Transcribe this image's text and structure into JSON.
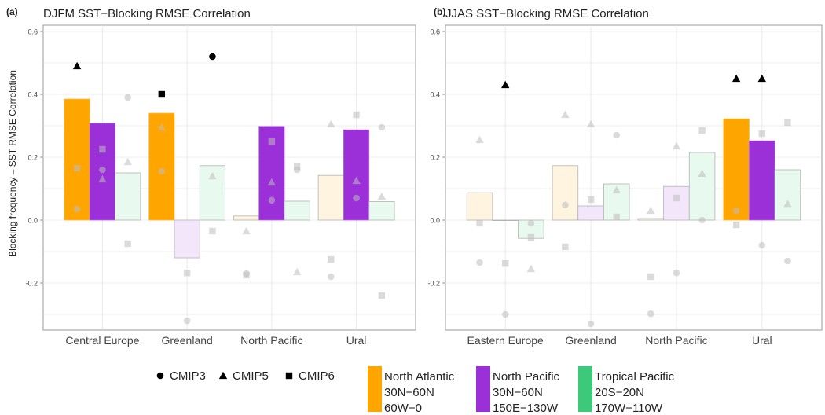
{
  "figure": {
    "ylabel": "Blocking frequency – SST RMSE Correlation",
    "panel_labels": [
      "(a)",
      "(b)"
    ]
  },
  "legend": {
    "models": [
      {
        "label": "CMIP3",
        "shape": "circle"
      },
      {
        "label": "CMIP5",
        "shape": "triangle"
      },
      {
        "label": "CMIP6",
        "shape": "square"
      }
    ],
    "regions": [
      {
        "name": "North Atlantic",
        "lat": "30N−60N",
        "lon": "60W−0",
        "color": "#FFA500"
      },
      {
        "name": "North Pacific",
        "lat": "30N−60N",
        "lon": "150E−130W",
        "color": "#9B30D9"
      },
      {
        "name": "Tropical Pacific",
        "lat": "20S−20N",
        "lon": "170W−110W",
        "color": "#3CC97A"
      }
    ]
  },
  "chart_data": [
    {
      "type": "bar",
      "panel": "(a)",
      "title": "DJFM SST−Blocking RMSE Correlation",
      "ylabel": "Blocking frequency – SST RMSE Correlation",
      "ylim": [
        -0.35,
        0.62
      ],
      "yticks": [
        -0.2,
        0.0,
        0.2,
        0.4,
        0.6
      ],
      "grid": true,
      "categories": [
        "Central Europe",
        "Greenland",
        "North Pacific",
        "Ural"
      ],
      "series": [
        {
          "name": "North Atlantic",
          "color": "#FFA500",
          "values": [
            0.385,
            0.34,
            0.013,
            0.142
          ],
          "significant": [
            true,
            true,
            false,
            false
          ]
        },
        {
          "name": "North Pacific",
          "color": "#9B30D9",
          "values": [
            0.308,
            -0.12,
            0.298,
            0.287
          ],
          "significant": [
            true,
            false,
            true,
            true
          ]
        },
        {
          "name": "Tropical Pacific",
          "color": "#3CC97A",
          "values": [
            0.15,
            0.173,
            0.06,
            0.059
          ],
          "significant": [
            false,
            false,
            false,
            false
          ]
        }
      ],
      "points": [
        {
          "category": 0,
          "series": 0,
          "model": "CMIP3",
          "value": 0.035,
          "significant": false
        },
        {
          "category": 0,
          "series": 0,
          "model": "CMIP5",
          "value": 0.49,
          "significant": true
        },
        {
          "category": 0,
          "series": 0,
          "model": "CMIP6",
          "value": 0.165,
          "significant": false
        },
        {
          "category": 0,
          "series": 1,
          "model": "CMIP3",
          "value": 0.16,
          "significant": false
        },
        {
          "category": 0,
          "series": 1,
          "model": "CMIP5",
          "value": 0.13,
          "significant": false
        },
        {
          "category": 0,
          "series": 1,
          "model": "CMIP6",
          "value": 0.225,
          "significant": false
        },
        {
          "category": 0,
          "series": 2,
          "model": "CMIP3",
          "value": 0.39,
          "significant": false
        },
        {
          "category": 0,
          "series": 2,
          "model": "CMIP5",
          "value": 0.185,
          "significant": false
        },
        {
          "category": 0,
          "series": 2,
          "model": "CMIP6",
          "value": -0.075,
          "significant": false
        },
        {
          "category": 1,
          "series": 0,
          "model": "CMIP3",
          "value": 0.155,
          "significant": false
        },
        {
          "category": 1,
          "series": 0,
          "model": "CMIP5",
          "value": 0.295,
          "significant": false
        },
        {
          "category": 1,
          "series": 0,
          "model": "CMIP6",
          "value": 0.4,
          "significant": true
        },
        {
          "category": 1,
          "series": 1,
          "model": "CMIP3",
          "value": -0.32,
          "significant": false
        },
        {
          "category": 1,
          "series": 1,
          "model": "CMIP6",
          "value": -0.168,
          "significant": false
        },
        {
          "category": 1,
          "series": 2,
          "model": "CMIP3",
          "value": 0.52,
          "significant": true
        },
        {
          "category": 1,
          "series": 2,
          "model": "CMIP5",
          "value": 0.14,
          "significant": false
        },
        {
          "category": 1,
          "series": 2,
          "model": "CMIP6",
          "value": -0.035,
          "significant": false
        },
        {
          "category": 2,
          "series": 0,
          "model": "CMIP3",
          "value": -0.17,
          "significant": false
        },
        {
          "category": 2,
          "series": 0,
          "model": "CMIP5",
          "value": -0.035,
          "significant": false
        },
        {
          "category": 2,
          "series": 0,
          "model": "CMIP6",
          "value": -0.175,
          "significant": false
        },
        {
          "category": 2,
          "series": 1,
          "model": "CMIP3",
          "value": 0.063,
          "significant": false
        },
        {
          "category": 2,
          "series": 1,
          "model": "CMIP5",
          "value": 0.12,
          "significant": false
        },
        {
          "category": 2,
          "series": 1,
          "model": "CMIP6",
          "value": 0.25,
          "significant": false
        },
        {
          "category": 2,
          "series": 2,
          "model": "CMIP3",
          "value": 0.16,
          "significant": false
        },
        {
          "category": 2,
          "series": 2,
          "model": "CMIP5",
          "value": -0.165,
          "significant": false
        },
        {
          "category": 2,
          "series": 2,
          "model": "CMIP6",
          "value": 0.17,
          "significant": false
        },
        {
          "category": 3,
          "series": 0,
          "model": "CMIP3",
          "value": -0.18,
          "significant": false
        },
        {
          "category": 3,
          "series": 0,
          "model": "CMIP5",
          "value": 0.305,
          "significant": false
        },
        {
          "category": 3,
          "series": 0,
          "model": "CMIP6",
          "value": -0.125,
          "significant": false
        },
        {
          "category": 3,
          "series": 1,
          "model": "CMIP3",
          "value": 0.07,
          "significant": false
        },
        {
          "category": 3,
          "series": 1,
          "model": "CMIP5",
          "value": 0.125,
          "significant": false
        },
        {
          "category": 3,
          "series": 1,
          "model": "CMIP6",
          "value": 0.335,
          "significant": false
        },
        {
          "category": 3,
          "series": 2,
          "model": "CMIP3",
          "value": 0.295,
          "significant": false
        },
        {
          "category": 3,
          "series": 2,
          "model": "CMIP5",
          "value": 0.075,
          "significant": false
        },
        {
          "category": 3,
          "series": 2,
          "model": "CMIP6",
          "value": -0.24,
          "significant": false
        }
      ]
    },
    {
      "type": "bar",
      "panel": "(b)",
      "title": "JJAS SST−Blocking RMSE Correlation",
      "ylim": [
        -0.35,
        0.62
      ],
      "yticks": [
        -0.2,
        0.0,
        0.2,
        0.4,
        0.6
      ],
      "grid": true,
      "categories": [
        "Eastern Europe",
        "Greenland",
        "North Pacific",
        "Ural"
      ],
      "series": [
        {
          "name": "North Atlantic",
          "color": "#FFA500",
          "values": [
            0.087,
            0.173,
            0.005,
            0.322
          ],
          "significant": [
            false,
            false,
            false,
            true
          ]
        },
        {
          "name": "North Pacific",
          "color": "#9B30D9",
          "values": [
            0.0,
            0.045,
            0.107,
            0.252
          ],
          "significant": [
            false,
            false,
            false,
            true
          ]
        },
        {
          "name": "Tropical Pacific",
          "color": "#3CC97A",
          "values": [
            -0.058,
            0.115,
            0.215,
            0.16
          ],
          "significant": [
            false,
            false,
            false,
            false
          ]
        }
      ],
      "points": [
        {
          "category": 0,
          "series": 0,
          "model": "CMIP3",
          "value": -0.135,
          "significant": false
        },
        {
          "category": 0,
          "series": 0,
          "model": "CMIP5",
          "value": 0.255,
          "significant": false
        },
        {
          "category": 0,
          "series": 0,
          "model": "CMIP6",
          "value": -0.01,
          "significant": false
        },
        {
          "category": 0,
          "series": 1,
          "model": "CMIP3",
          "value": -0.3,
          "significant": false
        },
        {
          "category": 0,
          "series": 1,
          "model": "CMIP5",
          "value": 0.43,
          "significant": true
        },
        {
          "category": 0,
          "series": 1,
          "model": "CMIP6",
          "value": -0.138,
          "significant": false
        },
        {
          "category": 0,
          "series": 2,
          "model": "CMIP3",
          "value": -0.01,
          "significant": false
        },
        {
          "category": 0,
          "series": 2,
          "model": "CMIP5",
          "value": -0.155,
          "significant": false
        },
        {
          "category": 0,
          "series": 2,
          "model": "CMIP6",
          "value": -0.055,
          "significant": false
        },
        {
          "category": 1,
          "series": 0,
          "model": "CMIP3",
          "value": 0.048,
          "significant": false
        },
        {
          "category": 1,
          "series": 0,
          "model": "CMIP5",
          "value": 0.335,
          "significant": false
        },
        {
          "category": 1,
          "series": 0,
          "model": "CMIP6",
          "value": -0.085,
          "significant": false
        },
        {
          "category": 1,
          "series": 1,
          "model": "CMIP3",
          "value": -0.33,
          "significant": false
        },
        {
          "category": 1,
          "series": 1,
          "model": "CMIP5",
          "value": 0.305,
          "significant": false
        },
        {
          "category": 1,
          "series": 1,
          "model": "CMIP6",
          "value": 0.065,
          "significant": false
        },
        {
          "category": 1,
          "series": 2,
          "model": "CMIP3",
          "value": 0.27,
          "significant": false
        },
        {
          "category": 1,
          "series": 2,
          "model": "CMIP5",
          "value": 0.095,
          "significant": false
        },
        {
          "category": 1,
          "series": 2,
          "model": "CMIP6",
          "value": 0.01,
          "significant": false
        },
        {
          "category": 2,
          "series": 0,
          "model": "CMIP3",
          "value": -0.298,
          "significant": false
        },
        {
          "category": 2,
          "series": 0,
          "model": "CMIP5",
          "value": 0.03,
          "significant": false
        },
        {
          "category": 2,
          "series": 0,
          "model": "CMIP6",
          "value": -0.18,
          "significant": false
        },
        {
          "category": 2,
          "series": 1,
          "model": "CMIP3",
          "value": -0.168,
          "significant": false
        },
        {
          "category": 2,
          "series": 1,
          "model": "CMIP5",
          "value": 0.235,
          "significant": false
        },
        {
          "category": 2,
          "series": 1,
          "model": "CMIP6",
          "value": 0.07,
          "significant": false
        },
        {
          "category": 2,
          "series": 2,
          "model": "CMIP3",
          "value": 0.0,
          "significant": false
        },
        {
          "category": 2,
          "series": 2,
          "model": "CMIP5",
          "value": 0.148,
          "significant": false
        },
        {
          "category": 2,
          "series": 2,
          "model": "CMIP6",
          "value": 0.285,
          "significant": false
        },
        {
          "category": 3,
          "series": 0,
          "model": "CMIP3",
          "value": 0.03,
          "significant": false
        },
        {
          "category": 3,
          "series": 0,
          "model": "CMIP5",
          "value": 0.45,
          "significant": true
        },
        {
          "category": 3,
          "series": 0,
          "model": "CMIP6",
          "value": -0.015,
          "significant": false
        },
        {
          "category": 3,
          "series": 1,
          "model": "CMIP3",
          "value": -0.08,
          "significant": false
        },
        {
          "category": 3,
          "series": 1,
          "model": "CMIP5",
          "value": 0.45,
          "significant": true
        },
        {
          "category": 3,
          "series": 1,
          "model": "CMIP6",
          "value": 0.275,
          "significant": false
        },
        {
          "category": 3,
          "series": 2,
          "model": "CMIP3",
          "value": -0.13,
          "significant": false
        },
        {
          "category": 3,
          "series": 2,
          "model": "CMIP5",
          "value": 0.052,
          "significant": false
        },
        {
          "category": 3,
          "series": 2,
          "model": "CMIP6",
          "value": 0.31,
          "significant": false
        }
      ]
    }
  ]
}
